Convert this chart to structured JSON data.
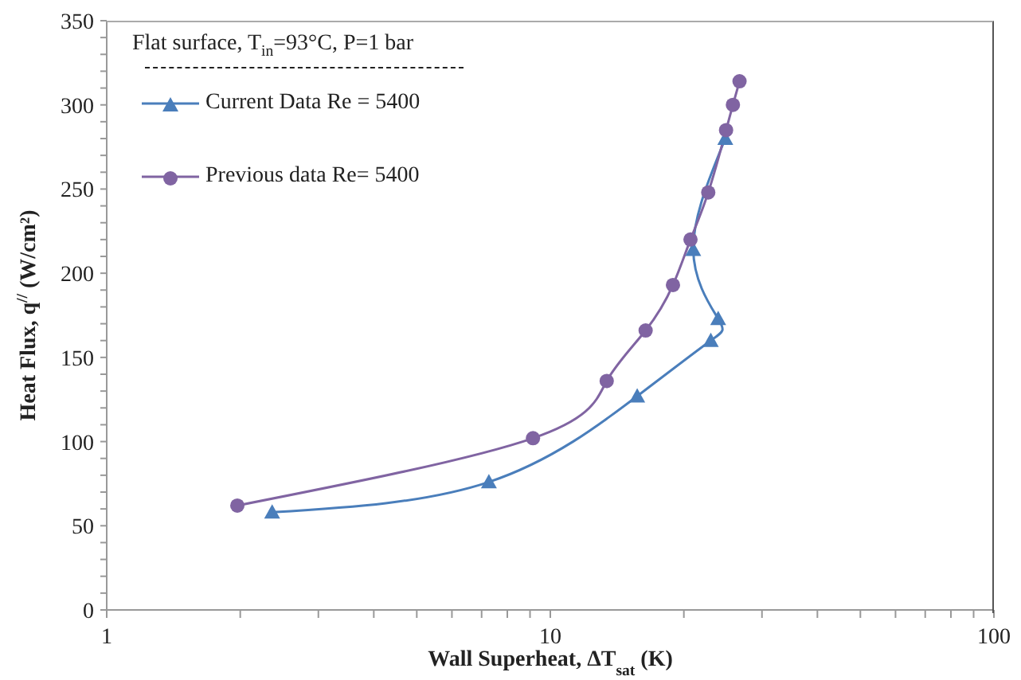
{
  "chart_data": {
    "type": "line",
    "xlabel": "Wall Superheat, ΔT$_{sat}$ (K)",
    "ylabel": "Heat Flux, q$^{//}$ (W/cm²)",
    "legend_title": "Flat surface, T$_{in}$=93°C, P=1 bar",
    "log": "x",
    "xlim": [
      1,
      100
    ],
    "ylim": [
      0,
      350
    ],
    "xticks": [
      1,
      {
        "value": 2,
        "label": null
      },
      {
        "value": 3,
        "label": null
      },
      {
        "value": 4,
        "label": null
      },
      {
        "value": 5,
        "label": null
      },
      {
        "value": 6,
        "label": null
      },
      {
        "value": 7,
        "label": null
      },
      {
        "value": 8,
        "label": null
      },
      {
        "value": 9,
        "label": null
      },
      10,
      {
        "value": 20,
        "label": null
      },
      {
        "value": 30,
        "label": null
      },
      {
        "value": 40,
        "label": null
      },
      {
        "value": 50,
        "label": null
      },
      {
        "value": 60,
        "label": null
      },
      {
        "value": 70,
        "label": null
      },
      {
        "value": 80,
        "label": null
      },
      {
        "value": 90,
        "label": null
      },
      100
    ],
    "yticks": [
      0,
      {
        "value": 10,
        "label": null
      },
      {
        "value": 20,
        "label": null
      },
      {
        "value": 30,
        "label": null
      },
      {
        "value": 40,
        "label": null
      },
      50,
      {
        "value": 60,
        "label": null
      },
      {
        "value": 70,
        "label": null
      },
      {
        "value": 80,
        "label": null
      },
      {
        "value": 90,
        "label": null
      },
      100,
      {
        "value": 110,
        "label": null
      },
      {
        "value": 120,
        "label": null
      },
      {
        "value": 130,
        "label": null
      },
      {
        "value": 140,
        "label": null
      },
      150,
      {
        "value": 160,
        "label": null
      },
      {
        "value": 170,
        "label": null
      },
      {
        "value": 180,
        "label": null
      },
      {
        "value": 190,
        "label": null
      },
      200,
      {
        "value": 210,
        "label": null
      },
      {
        "value": 220,
        "label": null
      },
      {
        "value": 230,
        "label": null
      },
      {
        "value": 240,
        "label": null
      },
      250,
      {
        "value": 260,
        "label": null
      },
      {
        "value": 270,
        "label": null
      },
      {
        "value": 280,
        "label": null
      },
      {
        "value": 290,
        "label": null
      },
      300,
      {
        "value": 310,
        "label": null
      },
      {
        "value": 320,
        "label": null
      },
      {
        "value": 330,
        "label": null
      },
      {
        "value": 340,
        "label": null
      },
      350
    ],
    "grid": false,
    "legend": "top left",
    "line_style": "solid",
    "series": [
      {
        "name": "Current Data Re = 5400",
        "color": "#4a7ebb",
        "marker": "triangle",
        "x": [
          2.36,
          7.27,
          15.7,
          23.0,
          23.9,
          21.0,
          24.8
        ],
        "values": [
          58,
          76,
          127,
          160,
          173,
          214,
          280
        ]
      },
      {
        "name": "Previous data Re= 5400",
        "color": "#8064a2",
        "marker": "circle",
        "x": [
          1.97,
          9.14,
          13.4,
          16.4,
          18.9,
          20.7,
          22.7,
          24.9,
          25.8,
          26.7
        ],
        "values": [
          62,
          102,
          136,
          166,
          193,
          220,
          248,
          285,
          300,
          314
        ]
      }
    ]
  }
}
